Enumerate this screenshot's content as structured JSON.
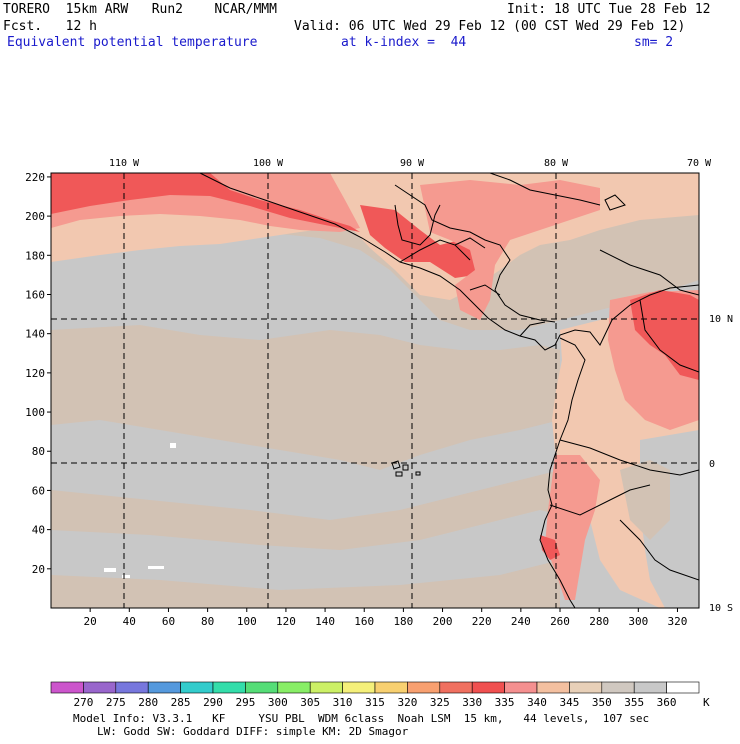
{
  "header": {
    "line1_left": "TORERO  15km ARW   Run2    NCAR/MMM",
    "line1_right": "Init: 18 UTC Tue 28 Feb 12",
    "line2_left": "Fcst.   12 h",
    "line2_right": "Valid: 06 UTC Wed 29 Feb 12 (00 CST Wed 29 Feb 12)",
    "line3_field": "Equivalent potential temperature",
    "line3_level": "at k-index =  44",
    "line3_smooth": "sm= 2"
  },
  "top_longitude_labels": [
    "110 W",
    "100 W",
    "90 W",
    "80 W",
    "70 W"
  ],
  "right_latitude_labels": [
    "10 N",
    "0",
    "10 S"
  ],
  "y_axis_ticks": [
    "20",
    "40",
    "60",
    "80",
    "100",
    "120",
    "140",
    "160",
    "180",
    "200",
    "220"
  ],
  "x_axis_ticks": [
    "20",
    "40",
    "60",
    "80",
    "100",
    "120",
    "140",
    "160",
    "180",
    "200",
    "220",
    "240",
    "260",
    "280",
    "300",
    "320"
  ],
  "colorbar": {
    "unit": "K",
    "labels": [
      "270",
      "275",
      "280",
      "285",
      "290",
      "295",
      "300",
      "305",
      "310",
      "315",
      "320",
      "325",
      "330",
      "335",
      "340",
      "345",
      "350",
      "355",
      "360"
    ],
    "colors": [
      "#cc55cc",
      "#9966cc",
      "#7777dd",
      "#5599dd",
      "#33cccc",
      "#33ddaa",
      "#55dd77",
      "#88ee66",
      "#ccf066",
      "#f5f07a",
      "#f8d070",
      "#f8a070",
      "#f07060",
      "#f05050",
      "#f59090",
      "#f4c0a0",
      "#e8d0b8",
      "#d0c8c0",
      "#c8c8c8",
      "#ffffff"
    ]
  },
  "footer": {
    "line1": "Model Info: V3.3.1   KF     YSU PBL  WDM 6class  Noah LSM  15 km,   44 levels,  107 sec",
    "line2": "LW: Godd SW: Goddard DIFF: simple KM: 2D Smagor"
  }
}
